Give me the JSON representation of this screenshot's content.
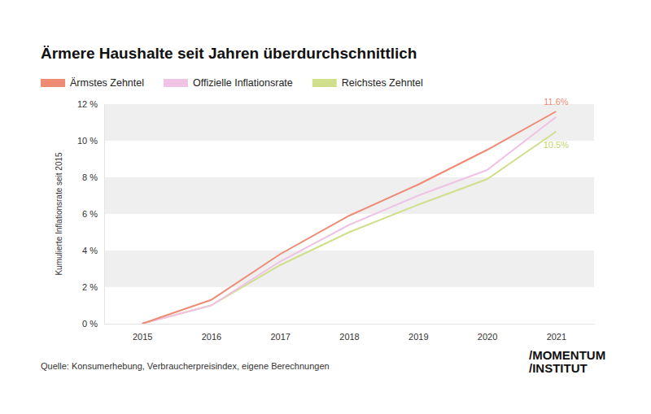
{
  "chart_data": {
    "type": "line",
    "title": "Ärmere Haushalte seit Jahren überdurchschnittlich",
    "y_label": "Kumulierte Inflationsrate seit 2015",
    "source": "Quelle: Konsumerhebung, Verbraucherpreisindex, eigene Berechnungen",
    "logo": [
      "/MOMENTUM",
      "/INSTITUT"
    ],
    "categories": [
      "2015",
      "2016",
      "2017",
      "2018",
      "2019",
      "2020",
      "2021"
    ],
    "series": [
      {
        "name": "Ärmstes Zehntel",
        "color": "#ee8b74",
        "values": [
          0,
          1.3,
          3.8,
          5.9,
          7.6,
          9.5,
          11.6
        ]
      },
      {
        "name": "Offizielle Inflationsrate",
        "color": "#f0c2e4",
        "values": [
          0,
          1.0,
          3.4,
          5.4,
          7.0,
          8.4,
          11.3
        ]
      },
      {
        "name": "Reichstes Zehntel",
        "color": "#d0df8c",
        "values": [
          0,
          1.0,
          3.2,
          5.0,
          6.5,
          7.9,
          10.5
        ]
      }
    ],
    "ylim": [
      0,
      12
    ],
    "yticks": [
      {
        "value": 0,
        "label": "0 %"
      },
      {
        "value": 2,
        "label": "2 %"
      },
      {
        "value": 4,
        "label": "4 %"
      },
      {
        "value": 6,
        "label": "6 %"
      },
      {
        "value": 8,
        "label": "8 %"
      },
      {
        "value": 10,
        "label": "10 %"
      },
      {
        "value": 12,
        "label": "12 %"
      }
    ],
    "grid": true,
    "legend": "top-left",
    "annotations": [
      {
        "text": "11.6%",
        "x": "2021",
        "y": 11.6,
        "color": "#ee8b74"
      },
      {
        "text": "10.5%",
        "x": "2021",
        "y": 10.5,
        "color": "#c2d46a"
      }
    ]
  }
}
